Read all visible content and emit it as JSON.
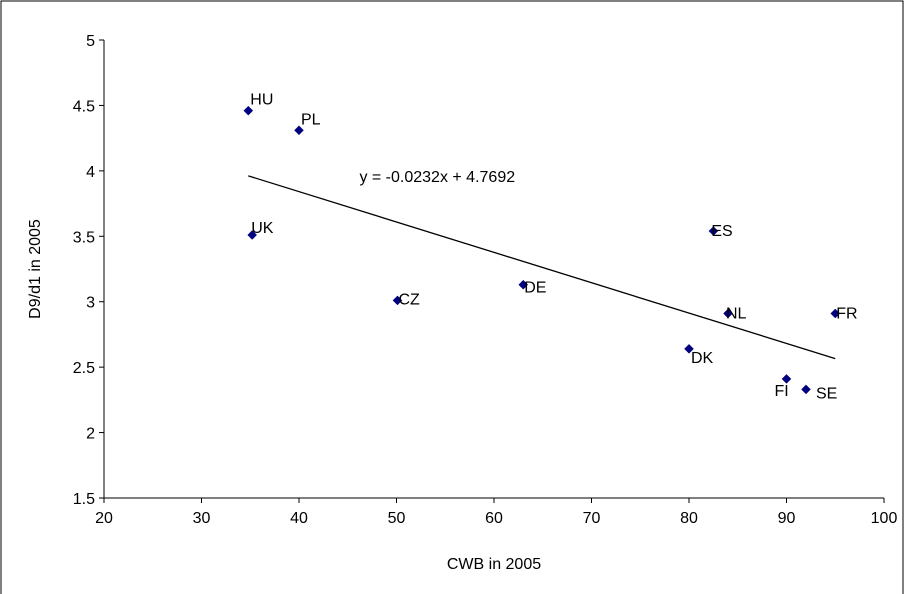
{
  "chart_data": {
    "type": "scatter",
    "xlabel": "CWB in 2005",
    "ylabel": "D9/d1 in 2005",
    "xlim": [
      20,
      100
    ],
    "ylim": [
      1.5,
      5
    ],
    "x_ticks": [
      20,
      30,
      40,
      50,
      60,
      70,
      80,
      90,
      100
    ],
    "y_ticks": [
      1.5,
      2,
      2.5,
      3,
      3.5,
      4,
      4.5,
      5
    ],
    "x_tick_labels": [
      "20",
      "30",
      "40",
      "50",
      "60",
      "70",
      "80",
      "90",
      "100"
    ],
    "y_tick_labels": [
      "1.5",
      "2",
      "2.5",
      "3",
      "3.5",
      "4",
      "4.5",
      "5"
    ],
    "grid": false,
    "legend": "none",
    "marker": "diamond",
    "marker_color": "#000080",
    "points": [
      {
        "label": "HU",
        "x": 34.8,
        "y": 4.46
      },
      {
        "label": "PL",
        "x": 40.0,
        "y": 4.31
      },
      {
        "label": "UK",
        "x": 35.2,
        "y": 3.51
      },
      {
        "label": "CZ",
        "x": 50.1,
        "y": 3.01
      },
      {
        "label": "DE",
        "x": 63.0,
        "y": 3.13
      },
      {
        "label": "ES",
        "x": 82.5,
        "y": 3.54
      },
      {
        "label": "NL",
        "x": 84.0,
        "y": 2.91
      },
      {
        "label": "FR",
        "x": 95.0,
        "y": 2.91
      },
      {
        "label": "DK",
        "x": 80.0,
        "y": 2.64
      },
      {
        "label": "FI",
        "x": 90.0,
        "y": 2.41
      },
      {
        "label": "SE",
        "x": 92.0,
        "y": 2.33
      }
    ],
    "trendline": {
      "slope": -0.0232,
      "intercept": 4.7692,
      "x_range": [
        34.8,
        95.0
      ],
      "equation_label": "y = -0.0232x + 4.7692",
      "color": "#000000"
    }
  }
}
